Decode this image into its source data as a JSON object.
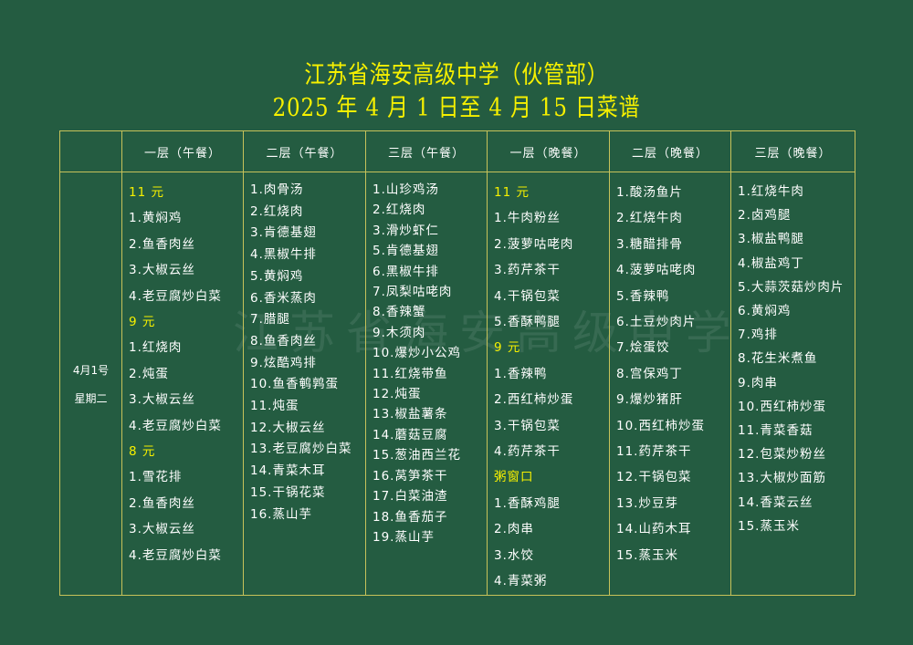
{
  "title": {
    "line1": "江苏省海安高级中学（伙管部）",
    "line2": "2025 年 4 月 1 日至 4 月 15 日菜谱"
  },
  "watermark": "江苏省海安高级中学",
  "table": {
    "headers": [
      "",
      "一层（午餐）",
      "二层（午餐）",
      "三层（午餐）",
      "一层（晚餐）",
      "二层（晚餐）",
      "三层（晚餐）"
    ],
    "day": {
      "date": "4月1号",
      "weekday": "星期二"
    },
    "columns": [
      {
        "lines": [
          {
            "t": "11 元",
            "price": true
          },
          {
            "t": "1.黄焖鸡"
          },
          {
            "t": "2.鱼香肉丝"
          },
          {
            "t": "3.大椒云丝"
          },
          {
            "t": "4.老豆腐炒白菜"
          },
          {
            "t": "9 元",
            "price": true
          },
          {
            "t": "1.红烧肉"
          },
          {
            "t": "2.炖蛋"
          },
          {
            "t": "3.大椒云丝"
          },
          {
            "t": "4.老豆腐炒白菜"
          },
          {
            "t": "8 元",
            "price": true
          },
          {
            "t": "1.雪花排"
          },
          {
            "t": "2.鱼香肉丝"
          },
          {
            "t": "3.大椒云丝"
          },
          {
            "t": "4.老豆腐炒白菜"
          }
        ]
      },
      {
        "lines": [
          {
            "t": "1.肉骨汤"
          },
          {
            "t": "2.红烧肉"
          },
          {
            "t": "3.肯德基翅"
          },
          {
            "t": "4.黑椒牛排"
          },
          {
            "t": "5.黄焖鸡"
          },
          {
            "t": "6.香米蒸肉"
          },
          {
            "t": "7.腊腿"
          },
          {
            "t": "8.鱼香肉丝"
          },
          {
            "t": "9.炫酷鸡排"
          },
          {
            "t": "10.鱼香鹌鹑蛋"
          },
          {
            "t": "11.炖蛋"
          },
          {
            "t": "12.大椒云丝"
          },
          {
            "t": "13.老豆腐炒白菜"
          },
          {
            "t": "14.青菜木耳"
          },
          {
            "t": "15.干锅花菜"
          },
          {
            "t": "16.蒸山芋"
          }
        ]
      },
      {
        "lines": [
          {
            "t": "1.山珍鸡汤"
          },
          {
            "t": "2.红烧肉"
          },
          {
            "t": "3.滑炒虾仁"
          },
          {
            "t": "5.肯德基翅"
          },
          {
            "t": "6.黑椒牛排"
          },
          {
            "t": "7.凤梨咕咾肉"
          },
          {
            "t": "8.香辣蟹"
          },
          {
            "t": "9.木须肉"
          },
          {
            "t": "10.爆炒小公鸡"
          },
          {
            "t": "11.红烧带鱼"
          },
          {
            "t": "12.炖蛋"
          },
          {
            "t": "13.椒盐薯条"
          },
          {
            "t": "14.蘑菇豆腐"
          },
          {
            "t": "15.葱油西兰花"
          },
          {
            "t": "16.莴笋茶干"
          },
          {
            "t": "17.白菜油渣"
          },
          {
            "t": "18.鱼香茄子"
          },
          {
            "t": "19.蒸山芋"
          }
        ]
      },
      {
        "lines": [
          {
            "t": "11 元",
            "price": true
          },
          {
            "t": "1.牛肉粉丝"
          },
          {
            "t": "2.菠萝咕咾肉"
          },
          {
            "t": "3.药芹茶干"
          },
          {
            "t": "4.干锅包菜"
          },
          {
            "t": "5.香酥鸭腿"
          },
          {
            "t": "9 元",
            "price": true
          },
          {
            "t": "1.香辣鸭"
          },
          {
            "t": "2.西红柿炒蛋"
          },
          {
            "t": "3.干锅包菜"
          },
          {
            "t": "4.药芹茶干"
          },
          {
            "t": "粥窗口",
            "price": true
          },
          {
            "t": "1.香酥鸡腿"
          },
          {
            "t": "2.肉串"
          },
          {
            "t": "3.水饺"
          },
          {
            "t": "4.青菜粥"
          }
        ]
      },
      {
        "lines": [
          {
            "t": "1.酸汤鱼片"
          },
          {
            "t": "2.红烧牛肉"
          },
          {
            "t": "3.糖醋排骨"
          },
          {
            "t": "4.菠萝咕咾肉"
          },
          {
            "t": "5.香辣鸭"
          },
          {
            "t": "6.土豆炒肉片"
          },
          {
            "t": "7.烩蛋饺"
          },
          {
            "t": "8.宫保鸡丁"
          },
          {
            "t": "9.爆炒猪肝"
          },
          {
            "t": "10.西红柿炒蛋"
          },
          {
            "t": "11.药芹茶干"
          },
          {
            "t": "12.干锅包菜"
          },
          {
            "t": "13.炒豆芽"
          },
          {
            "t": "14.山药木耳"
          },
          {
            "t": "15.蒸玉米"
          }
        ]
      },
      {
        "lines": [
          {
            "t": "1.红烧牛肉"
          },
          {
            "t": "2.卤鸡腿"
          },
          {
            "t": "3.椒盐鸭腿"
          },
          {
            "t": "4.椒盐鸡丁"
          },
          {
            "t": "5.大蒜茨菇炒肉片"
          },
          {
            "t": "6.黄焖鸡"
          },
          {
            "t": "7.鸡排"
          },
          {
            "t": "8.花生米煮鱼"
          },
          {
            "t": "9.肉串"
          },
          {
            "t": "10.西红柿炒蛋"
          },
          {
            "t": "11.青菜香菇"
          },
          {
            "t": "12.包菜炒粉丝"
          },
          {
            "t": "13.大椒炒面筋"
          },
          {
            "t": "14.香菜云丝"
          },
          {
            "t": "15.蒸玉米"
          }
        ]
      }
    ]
  },
  "colors": {
    "background": "#245c41",
    "title": "#f6f000",
    "price": "#f6f000",
    "border": "#c7c25a"
  }
}
